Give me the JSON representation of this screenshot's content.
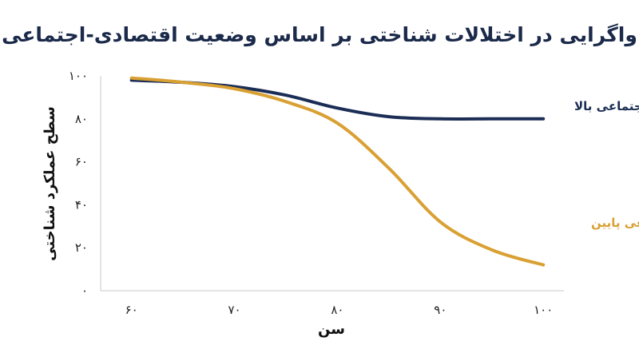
{
  "chart_data": {
    "type": "line",
    "title": "واگرایی در اختلالات شناختی بر اساس وضعیت اقتصادی-اجتماعی",
    "xlabel": "سن",
    "ylabel": "سطح عملکرد شناختی",
    "x": [
      60,
      70,
      80,
      90,
      100
    ],
    "x_tick_labels": [
      "۶۰",
      "۷۰",
      "۸۰",
      "۹۰",
      "۱۰۰"
    ],
    "y_tick_values": [
      0,
      20,
      40,
      60,
      80,
      100
    ],
    "y_tick_labels": [
      "۰",
      "۲۰",
      "۴۰",
      "۶۰",
      "۸۰",
      "۱۰۰"
    ],
    "xlim": [
      57,
      102
    ],
    "ylim": [
      0,
      100
    ],
    "grid": false,
    "legend": "inline labels",
    "series": [
      {
        "name": "وضعیت اقتصادی-اجتماعی بالا",
        "color": "#1b2d55",
        "x": [
          60,
          65,
          70,
          75,
          80,
          85,
          90,
          95,
          100
        ],
        "y": [
          98,
          97,
          95,
          91,
          85,
          81,
          80,
          80,
          80
        ]
      },
      {
        "name": "وضعیت اقتصادی-اجتماعی پایین",
        "color": "#d9a033",
        "x": [
          60,
          65,
          70,
          75,
          80,
          85,
          90,
          95,
          100
        ],
        "y": [
          99,
          97,
          94,
          88,
          78,
          57,
          32,
          19,
          12
        ]
      }
    ]
  }
}
